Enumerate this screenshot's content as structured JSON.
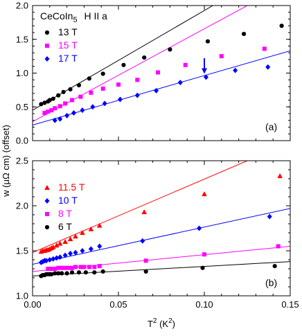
{
  "chart_data": [
    {
      "type": "scatter",
      "panel_label": "(a)",
      "title": {
        "material_base": "CeCoIn",
        "material_sub": "5",
        "field_orientation": "H II a"
      },
      "xlim": [
        0,
        0.15
      ],
      "ylim": [
        0,
        2.0
      ],
      "x_ticks": [
        0,
        0.05,
        0.1,
        0.15
      ],
      "y_ticks": [
        0.0,
        0.5,
        1.0,
        1.5,
        2.0
      ],
      "y_tick_labels": [
        "0.0",
        "0.5",
        "1.0",
        "1.5",
        "2.0"
      ],
      "grid": false,
      "legend_position": "top-left",
      "series": [
        {
          "name": "13 T",
          "marker": "circle",
          "color": "#000000",
          "x": [
            0.005,
            0.007,
            0.009,
            0.01,
            0.012,
            0.015,
            0.018,
            0.022,
            0.027,
            0.033,
            0.041,
            0.053,
            0.065,
            0.08,
            0.102,
            0.123,
            0.145
          ],
          "y": [
            0.54,
            0.56,
            0.58,
            0.6,
            0.62,
            0.67,
            0.72,
            0.76,
            0.82,
            0.92,
            0.99,
            1.12,
            1.23,
            1.35,
            1.47,
            1.58,
            1.7
          ],
          "fit": {
            "x": [
              0,
              0.105
            ],
            "y": [
              0.45,
              2.0
            ]
          }
        },
        {
          "name": "15 T",
          "marker": "square",
          "color": "#ff00ff",
          "x": [
            0.007,
            0.009,
            0.011,
            0.013,
            0.016,
            0.019,
            0.023,
            0.028,
            0.034,
            0.041,
            0.05,
            0.061,
            0.073,
            0.089,
            0.11,
            0.135
          ],
          "y": [
            0.41,
            0.43,
            0.45,
            0.48,
            0.51,
            0.55,
            0.6,
            0.65,
            0.71,
            0.77,
            0.83,
            0.9,
            1.01,
            1.12,
            1.25,
            1.36
          ],
          "fit": {
            "x": [
              0,
              0.125
            ],
            "y": [
              0.28,
              2.0
            ]
          }
        },
        {
          "name": "17 T",
          "marker": "diamond",
          "color": "#0000ff",
          "x": [
            0.013,
            0.016,
            0.02,
            0.024,
            0.029,
            0.035,
            0.042,
            0.051,
            0.061,
            0.072,
            0.086,
            0.101,
            0.118,
            0.137
          ],
          "y": [
            0.3,
            0.32,
            0.37,
            0.41,
            0.45,
            0.5,
            0.55,
            0.61,
            0.67,
            0.74,
            0.86,
            0.94,
            1.04,
            1.09
          ],
          "fit": {
            "x": [
              0,
              0.15
            ],
            "y": [
              0.23,
              1.33
            ]
          }
        }
      ],
      "annotation": {
        "type": "arrow",
        "color": "#0000ff",
        "x": 0.1,
        "y_from": 1.22,
        "y_to": 0.99
      }
    },
    {
      "type": "scatter",
      "panel_label": "(b)",
      "xlim": [
        0,
        0.15
      ],
      "ylim": [
        1.0,
        2.5
      ],
      "x_ticks": [
        0,
        0.05,
        0.1,
        0.15
      ],
      "x_tick_labels": [
        "0.00",
        "0.05",
        "0.10",
        "0.15"
      ],
      "y_ticks": [
        1.0,
        1.5,
        2.0,
        2.5
      ],
      "y_tick_labels": [
        "1.0",
        "1.5",
        "2.0",
        "2.5"
      ],
      "xlabel": {
        "base": "T",
        "sup": "2",
        "unit_open": " (K",
        "unit_sup": "2",
        "unit_close": ")"
      },
      "grid": false,
      "legend_position": "top-left",
      "series": [
        {
          "name": "11.5 T",
          "marker": "triangle",
          "color": "#ff0000",
          "x": [
            0.005,
            0.006,
            0.007,
            0.008,
            0.009,
            0.01,
            0.011,
            0.012,
            0.014,
            0.016,
            0.019,
            0.022,
            0.025,
            0.029,
            0.034,
            0.039,
            0.065,
            0.1,
            0.144
          ],
          "y": [
            1.49,
            1.5,
            1.5,
            1.51,
            1.51,
            1.52,
            1.53,
            1.54,
            1.56,
            1.58,
            1.6,
            1.63,
            1.66,
            1.7,
            1.74,
            1.78,
            1.93,
            2.13,
            2.33
          ],
          "fit": {
            "x": [
              0,
              0.125
            ],
            "y": [
              1.48,
              2.5
            ]
          }
        },
        {
          "name": "10 T",
          "marker": "diamond",
          "color": "#0000ff",
          "x": [
            0.005,
            0.006,
            0.007,
            0.008,
            0.01,
            0.012,
            0.014,
            0.016,
            0.019,
            0.022,
            0.025,
            0.029,
            0.034,
            0.039,
            0.064,
            0.097,
            0.138
          ],
          "y": [
            1.37,
            1.38,
            1.39,
            1.39,
            1.4,
            1.41,
            1.42,
            1.43,
            1.45,
            1.47,
            1.48,
            1.5,
            1.52,
            1.55,
            1.61,
            1.75,
            1.88
          ],
          "fit": {
            "x": [
              0,
              0.15
            ],
            "y": [
              1.35,
              1.97
            ]
          }
        },
        {
          "name": "8 T",
          "marker": "square",
          "color": "#ff00ff",
          "x": [
            0.009,
            0.011,
            0.013,
            0.015,
            0.017,
            0.019,
            0.021,
            0.023,
            0.025,
            0.028,
            0.03,
            0.033,
            0.036,
            0.039,
            0.066,
            0.1,
            0.143
          ],
          "y": [
            1.3,
            1.3,
            1.3,
            1.31,
            1.31,
            1.31,
            1.31,
            1.31,
            1.32,
            1.32,
            1.32,
            1.32,
            1.32,
            1.33,
            1.39,
            1.46,
            1.55
          ],
          "fit": {
            "x": [
              0,
              0.15
            ],
            "y": [
              1.27,
              1.55
            ]
          }
        },
        {
          "name": "6 T",
          "marker": "circle",
          "color": "#000000",
          "x": [
            0.005,
            0.006,
            0.007,
            0.008,
            0.009,
            0.01,
            0.011,
            0.013,
            0.015,
            0.017,
            0.02,
            0.023,
            0.027,
            0.031,
            0.036,
            0.041,
            0.066,
            0.099,
            0.141
          ],
          "y": [
            1.22,
            1.23,
            1.23,
            1.24,
            1.24,
            1.24,
            1.24,
            1.25,
            1.25,
            1.25,
            1.25,
            1.26,
            1.26,
            1.26,
            1.26,
            1.27,
            1.27,
            1.31,
            1.33
          ],
          "fit": {
            "x": [
              0,
              0.15
            ],
            "y": [
              1.22,
              1.38
            ]
          }
        }
      ]
    }
  ],
  "shared_ylabel": "w (μΩ cm) (offset)"
}
